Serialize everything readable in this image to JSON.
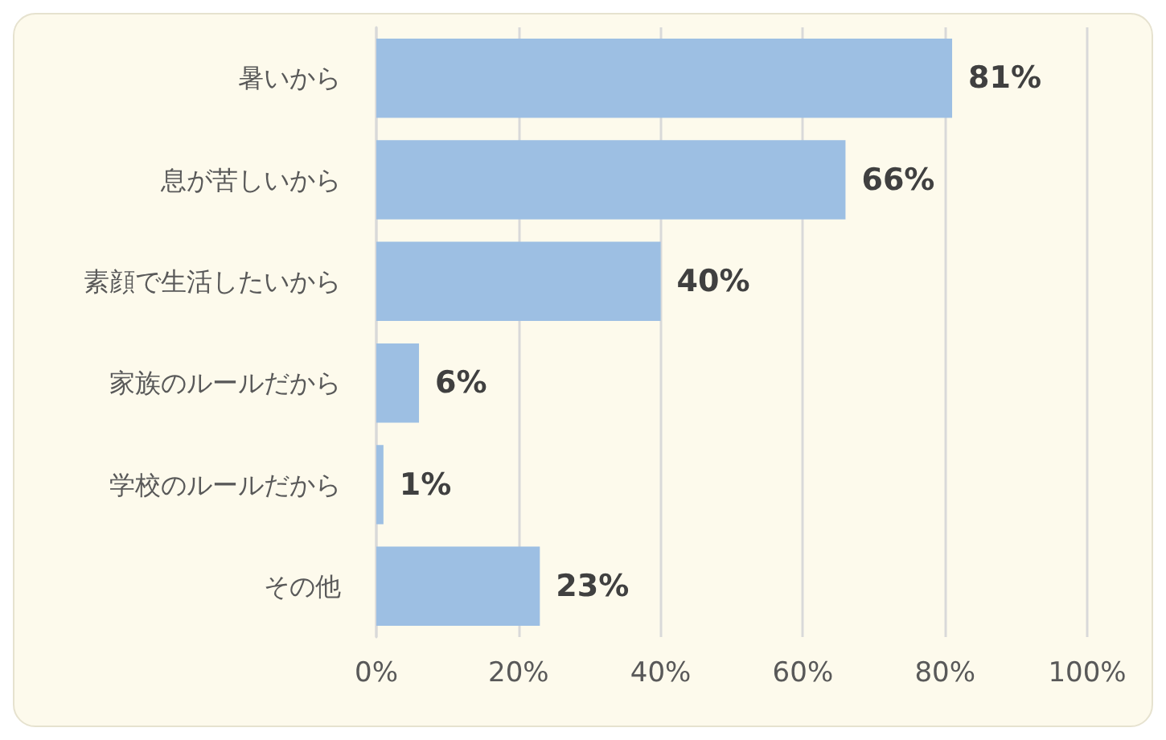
{
  "chart_data": {
    "type": "bar",
    "orientation": "horizontal",
    "categories": [
      "暑いから",
      "息が苦しいから",
      "素顔で生活したいから",
      "家族のルールだから",
      "学校のルールだから",
      "その他"
    ],
    "values": [
      81,
      66,
      40,
      6,
      1,
      23
    ],
    "value_labels": [
      "81%",
      "66%",
      "40%",
      "6%",
      "1%",
      "23%"
    ],
    "color": "#9dbfe3",
    "xlim": [
      0,
      100
    ],
    "xticks": [
      {
        "value": 0,
        "label": "0%"
      },
      {
        "value": 20,
        "label": "20%"
      },
      {
        "value": 40,
        "label": "40%"
      },
      {
        "value": 60,
        "label": "60%"
      },
      {
        "value": 80,
        "label": "80%"
      },
      {
        "value": 100,
        "label": "100%"
      }
    ],
    "grid": "x"
  }
}
